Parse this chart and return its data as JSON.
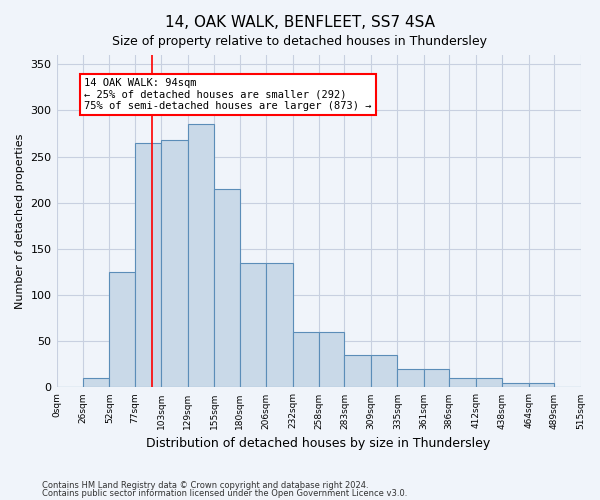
{
  "title1": "14, OAK WALK, BENFLEET, SS7 4SA",
  "title2": "Size of property relative to detached houses in Thundersley",
  "xlabel": "Distribution of detached houses by size in Thundersley",
  "ylabel": "Number of detached properties",
  "bar_values": [
    0,
    10,
    125,
    265,
    268,
    285,
    215,
    135,
    135,
    60,
    60,
    35,
    35,
    20,
    20,
    10,
    10,
    5,
    5,
    1
  ],
  "bin_edges": [
    0,
    26,
    52,
    77,
    103,
    129,
    155,
    180,
    206,
    232,
    258,
    283,
    309,
    335,
    361,
    386,
    412,
    438,
    464,
    489,
    515
  ],
  "bar_color": "#c9d9e8",
  "bar_edge_color": "#5b8db8",
  "grid_color": "#c8d0e0",
  "vline_x": 94,
  "vline_color": "red",
  "annotation_text": "14 OAK WALK: 94sqm\n← 25% of detached houses are smaller (292)\n75% of semi-detached houses are larger (873) →",
  "annotation_box_color": "white",
  "annotation_box_edge_color": "red",
  "ylim": [
    0,
    360
  ],
  "yticks": [
    0,
    50,
    100,
    150,
    200,
    250,
    300,
    350
  ],
  "tick_labels": [
    "0sqm",
    "26sqm",
    "52sqm",
    "77sqm",
    "103sqm",
    "129sqm",
    "155sqm",
    "180sqm",
    "206sqm",
    "232sqm",
    "258sqm",
    "283sqm",
    "309sqm",
    "335sqm",
    "361sqm",
    "386sqm",
    "412sqm",
    "438sqm",
    "464sqm",
    "489sqm",
    "515sqm"
  ],
  "footnote1": "Contains HM Land Registry data © Crown copyright and database right 2024.",
  "footnote2": "Contains public sector information licensed under the Open Government Licence v3.0.",
  "bg_color": "#f0f4fa"
}
